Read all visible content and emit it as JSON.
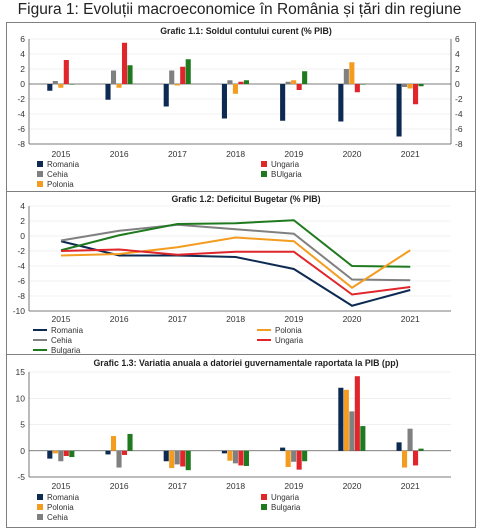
{
  "figure_title": "Figura 1: Evoluții macroeconomice în România și țări din regiune",
  "colors": {
    "Romania": "#0d2b52",
    "Cehia": "#808080",
    "BUlgaria": "#1f7a1f",
    "Polonia": "#f39c1f",
    "Ungaria": "#e0262b"
  },
  "chart_data": [
    {
      "type": "bar",
      "title": "Grafic 1.1: Soldul contului curent (% PIB)",
      "categories": [
        "2015",
        "2016",
        "2017",
        "2018",
        "2019",
        "2020",
        "2021"
      ],
      "ylim": [
        -8,
        6
      ],
      "yticks": [
        "6",
        "4",
        "2",
        "0",
        "-2",
        "-4",
        "-6",
        "-8"
      ],
      "secondary_axis": true,
      "legend_position": "bottom",
      "series": [
        {
          "name": "Romania",
          "values": [
            -0.9,
            -2.1,
            -3.0,
            -4.6,
            -4.9,
            -5.0,
            -7.0
          ]
        },
        {
          "name": "Cehia",
          "values": [
            0.4,
            1.8,
            1.8,
            0.5,
            0.3,
            2.0,
            -0.4
          ]
        },
        {
          "name": "Polonia",
          "values": [
            -0.5,
            -0.5,
            -0.2,
            -1.3,
            0.5,
            2.9,
            -0.6
          ]
        },
        {
          "name": "Ungaria",
          "values": [
            3.2,
            5.5,
            2.3,
            0.3,
            -0.8,
            -1.1,
            -2.7
          ]
        },
        {
          "name": "BUlgaria",
          "values": [
            0.0,
            2.5,
            3.3,
            0.5,
            1.7,
            0.0,
            -0.3
          ]
        }
      ]
    },
    {
      "type": "line",
      "title": "Grafic 1.2: Deficitul Bugetar (% PIB)",
      "categories": [
        "2015",
        "2016",
        "2017",
        "2018",
        "2019",
        "2020",
        "2021"
      ],
      "ylim": [
        -10,
        4
      ],
      "yticks": [
        "4",
        "2",
        "0",
        "-2",
        "-4",
        "-6",
        "-8",
        "-10"
      ],
      "legend_position": "bottom",
      "series": [
        {
          "name": "Romania",
          "values": [
            -0.7,
            -2.6,
            -2.6,
            -2.8,
            -4.4,
            -9.3,
            -7.2
          ]
        },
        {
          "name": "Cehia",
          "values": [
            -0.6,
            0.7,
            1.5,
            0.9,
            0.3,
            -5.8,
            -5.9
          ]
        },
        {
          "name": "Bulgaria",
          "values": [
            -1.9,
            0.1,
            1.6,
            1.7,
            2.1,
            -4.0,
            -4.1
          ]
        },
        {
          "name": "Polonia",
          "values": [
            -2.6,
            -2.4,
            -1.5,
            -0.2,
            -0.7,
            -6.9,
            -1.9
          ]
        },
        {
          "name": "Ungaria",
          "values": [
            -2.0,
            -1.8,
            -2.5,
            -2.1,
            -2.1,
            -7.8,
            -6.8
          ]
        }
      ]
    },
    {
      "type": "bar",
      "title": "Grafic 1.3: Variatia anuala a datoriei guvernamentale raportata la PIB (pp)",
      "categories": [
        "2015",
        "2016",
        "2017",
        "2018",
        "2019",
        "2020",
        "2021"
      ],
      "ylim": [
        -5,
        15
      ],
      "yticks": [
        "15",
        "10",
        "5",
        "0",
        "-5"
      ],
      "legend_position": "bottom",
      "series": [
        {
          "name": "Romania",
          "values": [
            -1.5,
            -0.7,
            -2.0,
            -0.5,
            0.6,
            12.0,
            1.6
          ]
        },
        {
          "name": "Polonia",
          "values": [
            -0.5,
            2.8,
            -3.3,
            -1.9,
            -3.1,
            11.6,
            -3.2
          ]
        },
        {
          "name": "Cehia",
          "values": [
            -2.0,
            -3.2,
            -2.6,
            -2.4,
            -2.1,
            7.5,
            4.2
          ]
        },
        {
          "name": "Ungaria",
          "values": [
            -1.0,
            -0.8,
            -3.0,
            -2.8,
            -3.6,
            14.2,
            -2.8
          ]
        },
        {
          "name": "Bulgaria",
          "values": [
            -1.2,
            3.2,
            -3.7,
            -2.9,
            -2.0,
            4.7,
            0.4
          ]
        }
      ]
    }
  ]
}
